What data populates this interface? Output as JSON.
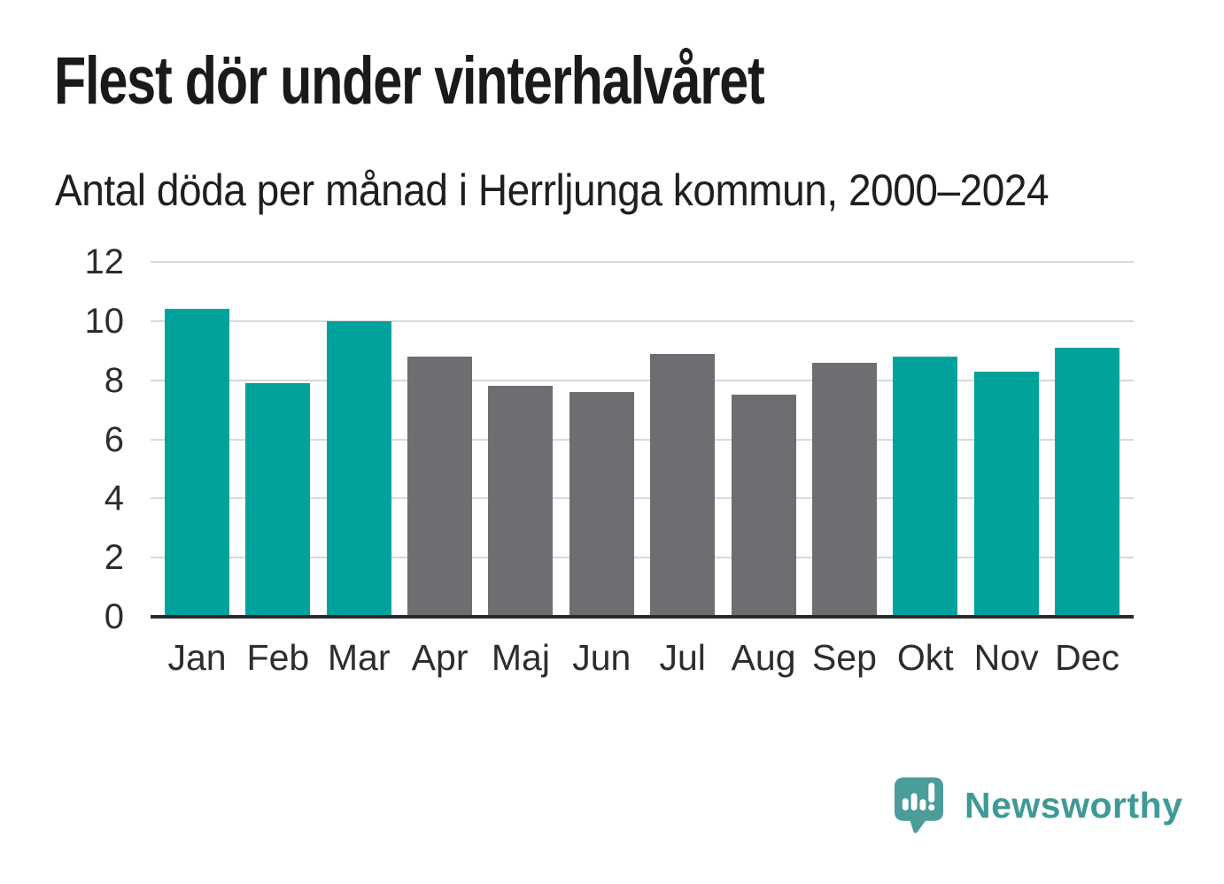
{
  "header": {
    "title": "Flest dör under vinterhalvåret",
    "subtitle": "Antal döda per månad i Herrljunga kommun, 2000–2024"
  },
  "chart_data": {
    "type": "bar",
    "title": "Flest dör under vinterhalvåret",
    "subtitle": "Antal döda per månad i Herrljunga kommun, 2000–2024",
    "categories": [
      "Jan",
      "Feb",
      "Mar",
      "Apr",
      "Maj",
      "Jun",
      "Jul",
      "Aug",
      "Sep",
      "Okt",
      "Nov",
      "Dec"
    ],
    "values": [
      10.4,
      7.9,
      10.0,
      8.8,
      7.8,
      7.6,
      8.9,
      7.5,
      8.6,
      8.8,
      8.3,
      9.1
    ],
    "bar_colors": [
      "#00a39b",
      "#00a39b",
      "#00a39b",
      "#6e6d72",
      "#6e6d72",
      "#6e6d72",
      "#6e6d72",
      "#6e6d72",
      "#6e6d72",
      "#00a39b",
      "#00a39b",
      "#00a39b"
    ],
    "highlighted_months": [
      "Jan",
      "Feb",
      "Mar",
      "Okt",
      "Nov",
      "Dec"
    ],
    "xlabel": "",
    "ylabel": "",
    "ylim": [
      0,
      12
    ],
    "yticks": [
      0,
      2,
      4,
      6,
      8,
      10,
      12
    ],
    "grid": "horizontal",
    "legend": "none"
  },
  "colors": {
    "highlight_teal": "#00a39b",
    "neutral_gray": "#6e6d72",
    "axis_line": "#2b2b2b",
    "gridline": "#d9d9d9",
    "title_text": "#1a1a1a",
    "logo_teal": "#4a9d9a",
    "wordmark_teal": "#3f9a97"
  },
  "footer": {
    "brand": "Newsworthy",
    "logo_icon": "bar-chart-speech-bubble-icon"
  }
}
